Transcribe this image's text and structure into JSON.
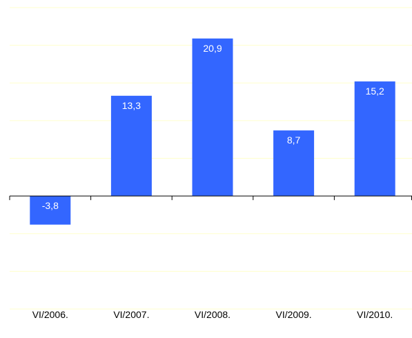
{
  "chart_data": {
    "type": "bar",
    "categories": [
      "VI/2006.",
      "VI/2007.",
      "VI/2008.",
      "VI/2009.",
      "VI/2010."
    ],
    "values": [
      -3.8,
      13.3,
      20.9,
      8.7,
      15.2
    ],
    "data_labels": [
      "-3,8",
      "13,3",
      "20,9",
      "8,7",
      "15,2"
    ],
    "ylim": [
      -15,
      25
    ],
    "grid": true,
    "bar_color": "#3366FF",
    "grid_color": "#FFFFCC",
    "axis_color": "#000000",
    "label_color": "#FFFFFF",
    "title": "",
    "xlabel": "",
    "ylabel": ""
  }
}
